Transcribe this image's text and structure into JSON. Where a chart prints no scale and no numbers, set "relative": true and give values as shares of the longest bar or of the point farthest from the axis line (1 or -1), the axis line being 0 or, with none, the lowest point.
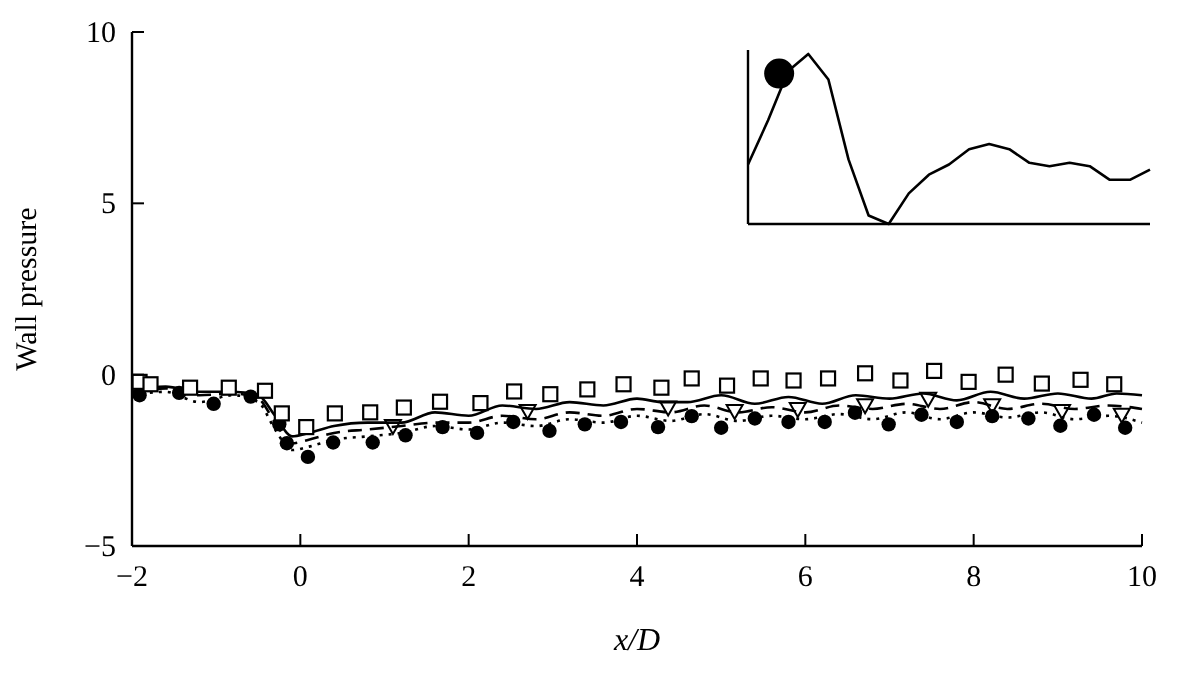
{
  "chart_data": [
    {
      "type": "line",
      "xlabel": "x/D",
      "ylabel": "Wall pressure",
      "xlim": [
        -2,
        10
      ],
      "ylim": [
        -5,
        10
      ],
      "xticks": [
        {
          "value": -2,
          "label": "−2"
        },
        0,
        2,
        4,
        6,
        8,
        10
      ],
      "yticks": [
        {
          "value": -5,
          "label": "−5"
        },
        0,
        5,
        10
      ],
      "grid": false,
      "series": [
        {
          "type": "scatter",
          "marker": "square",
          "color": "#000000",
          "x": [
            -1.91,
            -1.78,
            -1.31,
            -0.85,
            -0.42,
            -0.22,
            0.07,
            0.41,
            0.83,
            1.23,
            1.66,
            2.14,
            2.54,
            2.97,
            3.41,
            3.84,
            4.29,
            4.65,
            5.07,
            5.47,
            5.86,
            6.27,
            6.71,
            7.13,
            7.53,
            7.94,
            8.38,
            8.81,
            9.27,
            9.67
          ],
          "values": [
            -0.21,
            -0.28,
            -0.38,
            -0.38,
            -0.47,
            -1.13,
            -1.53,
            -1.13,
            -1.1,
            -0.96,
            -0.79,
            -0.83,
            -0.49,
            -0.57,
            -0.43,
            -0.28,
            -0.38,
            -0.11,
            -0.32,
            -0.11,
            -0.17,
            -0.11,
            0.04,
            -0.17,
            0.11,
            -0.21,
            0,
            -0.26,
            -0.15,
            -0.28
          ]
        },
        {
          "line_style": "solid",
          "color": "#000000",
          "x": [
            -2,
            -1.6,
            -1.2,
            -0.8,
            -0.5,
            -0.3,
            -0.1,
            0.1,
            0.4,
            0.8,
            1.2,
            1.6,
            2.0,
            2.4,
            2.8,
            3.2,
            3.6,
            4.0,
            4.3,
            4.6,
            5.0,
            5.4,
            5.8,
            6.2,
            6.6,
            7.0,
            7.4,
            7.8,
            8.2,
            8.6,
            9.0,
            9.4,
            9.7,
            10
          ],
          "values": [
            -0.5,
            -0.35,
            -0.5,
            -0.5,
            -0.6,
            -1.2,
            -1.8,
            -1.7,
            -1.5,
            -1.4,
            -1.4,
            -1.1,
            -1.2,
            -0.9,
            -1.0,
            -0.8,
            -0.9,
            -0.7,
            -0.8,
            -0.8,
            -0.6,
            -0.85,
            -0.65,
            -0.85,
            -0.6,
            -0.7,
            -0.55,
            -0.75,
            -0.5,
            -0.7,
            -0.55,
            -0.7,
            -0.55,
            -0.6
          ]
        },
        {
          "line_style": "dashed",
          "color": "#000000",
          "x": [
            -2,
            -1.6,
            -1.2,
            -0.8,
            -0.5,
            -0.3,
            -0.1,
            0.1,
            0.4,
            0.8,
            1.2,
            1.6,
            2.0,
            2.4,
            2.8,
            3.2,
            3.6,
            4.0,
            4.4,
            4.8,
            5.2,
            5.6,
            6.0,
            6.4,
            6.8,
            7.2,
            7.6,
            8.0,
            8.4,
            8.8,
            9.2,
            9.6,
            10
          ],
          "values": [
            -0.5,
            -0.4,
            -0.6,
            -0.55,
            -0.7,
            -1.4,
            -2.0,
            -1.9,
            -1.7,
            -1.6,
            -1.5,
            -1.4,
            -1.4,
            -1.2,
            -1.3,
            -1.1,
            -1.2,
            -1.0,
            -1.1,
            -0.9,
            -1.1,
            -0.95,
            -1.1,
            -0.9,
            -1.0,
            -0.85,
            -1.0,
            -0.8,
            -1.0,
            -0.85,
            -1.0,
            -0.9,
            -1.0
          ]
        },
        {
          "line_style": "dotted",
          "color": "#000000",
          "x": [
            -2,
            -1.6,
            -1.2,
            -0.8,
            -0.5,
            -0.3,
            -0.1,
            0.1,
            0.4,
            0.8,
            1.2,
            1.6,
            2.0,
            2.4,
            2.8,
            3.2,
            3.6,
            4.0,
            4.4,
            4.8,
            5.2,
            5.6,
            6.0,
            6.4,
            6.8,
            7.2,
            7.6,
            8.0,
            8.4,
            8.8,
            9.2,
            9.6,
            10
          ],
          "values": [
            -0.6,
            -0.5,
            -0.8,
            -0.6,
            -0.8,
            -1.6,
            -2.2,
            -2.1,
            -1.9,
            -1.8,
            -1.7,
            -1.5,
            -1.6,
            -1.4,
            -1.5,
            -1.3,
            -1.4,
            -1.2,
            -1.35,
            -1.15,
            -1.35,
            -1.2,
            -1.3,
            -1.15,
            -1.3,
            -1.1,
            -1.3,
            -1.1,
            -1.25,
            -1.1,
            -1.3,
            -1.2,
            -1.4
          ]
        },
        {
          "type": "scatter",
          "marker": "circle",
          "color": "#000000",
          "x": [
            -1.91,
            -1.44,
            -1.03,
            -0.59,
            -0.25,
            -0.16,
            0.09,
            0.39,
            0.86,
            1.25,
            1.69,
            2.1,
            2.53,
            2.96,
            3.38,
            3.81,
            4.25,
            4.65,
            5.0,
            5.4,
            5.8,
            6.23,
            6.59,
            6.99,
            7.38,
            7.8,
            8.22,
            8.65,
            9.03,
            9.43,
            9.8
          ],
          "values": [
            -0.6,
            -0.53,
            -0.85,
            -0.64,
            -1.45,
            -2.0,
            -2.4,
            -1.98,
            -1.98,
            -1.77,
            -1.53,
            -1.7,
            -1.38,
            -1.64,
            -1.45,
            -1.38,
            -1.53,
            -1.21,
            -1.55,
            -1.28,
            -1.38,
            -1.38,
            -1.11,
            -1.45,
            -1.17,
            -1.38,
            -1.21,
            -1.28,
            -1.49,
            -1.17,
            -1.55
          ]
        },
        {
          "type": "scatter",
          "marker": "triangle",
          "color": "#000000",
          "x": [
            1.1,
            2.7,
            4.37,
            5.16,
            5.91,
            6.71,
            7.46,
            8.22,
            9.05,
            9.76
          ],
          "values": [
            -1.5,
            -1.06,
            -0.96,
            -1.06,
            -1.0,
            -0.89,
            -0.7,
            -0.89,
            -1.06,
            -1.17
          ]
        }
      ]
    },
    {
      "type": "line",
      "relative": true,
      "categories": [
        null,
        null,
        null,
        null,
        null,
        null,
        null,
        null,
        null,
        null,
        null,
        null,
        null,
        null,
        null,
        null,
        null,
        null,
        null,
        null,
        null
      ],
      "series": [
        {
          "color": "#000000",
          "values": [
            0.35,
            0.61,
            0.9,
            1.0,
            0.85,
            0.38,
            0.05,
            0,
            0.18,
            0.29,
            0.35,
            0.44,
            0.47,
            0.44,
            0.36,
            0.34,
            0.36,
            0.34,
            0.26,
            0.26,
            0.32
          ]
        }
      ]
    }
  ]
}
